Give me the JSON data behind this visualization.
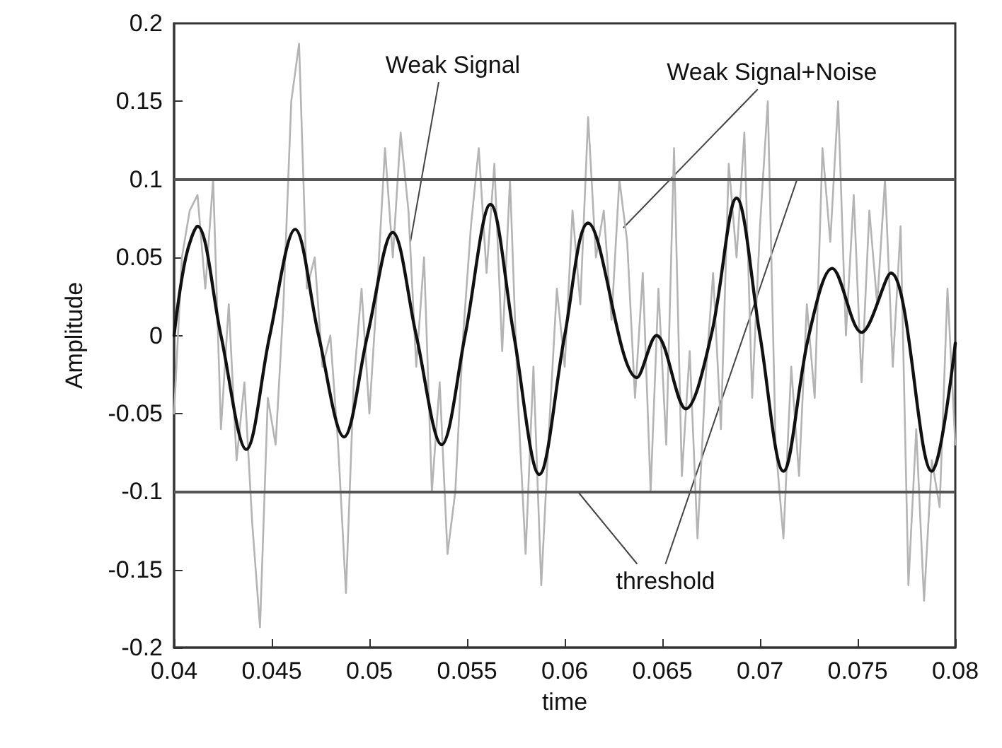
{
  "chart_data": {
    "type": "line",
    "xlabel": "time",
    "ylabel": "Amplitude",
    "xlim": [
      0.04,
      0.08
    ],
    "xticks": [
      0.04,
      0.045,
      0.05,
      0.055,
      0.06,
      0.065,
      0.07,
      0.075,
      0.08
    ],
    "ylim": [
      -0.2,
      0.2
    ],
    "yticks": [
      -0.2,
      -0.15,
      -0.1,
      -0.05,
      0,
      0.05,
      0.1,
      0.15,
      0.2
    ],
    "grid": false,
    "marker": "none",
    "line_style": "solid",
    "series": [
      {
        "color": "#b4b4b4",
        "x": [
          0.04,
          0.0404,
          0.0408,
          0.0412,
          0.0416,
          0.042,
          0.0424,
          0.0428,
          0.0432,
          0.0436,
          0.044,
          0.0444,
          0.0448,
          0.0452,
          0.0456,
          0.046,
          0.0464,
          0.0468,
          0.0472,
          0.0476,
          0.048,
          0.0484,
          0.0488,
          0.0492,
          0.0496,
          0.05,
          0.0504,
          0.0508,
          0.0512,
          0.0516,
          0.052,
          0.0524,
          0.0528,
          0.0532,
          0.0536,
          0.054,
          0.0544,
          0.0548,
          0.0552,
          0.0556,
          0.056,
          0.0564,
          0.0568,
          0.0572,
          0.0576,
          0.058,
          0.0584,
          0.0588,
          0.0592,
          0.0596,
          0.06,
          0.0604,
          0.0608,
          0.0612,
          0.0616,
          0.062,
          0.0624,
          0.0628,
          0.0632,
          0.0636,
          0.064,
          0.0644,
          0.0648,
          0.0652,
          0.0656,
          0.066,
          0.0664,
          0.0668,
          0.0672,
          0.0676,
          0.068,
          0.0684,
          0.0688,
          0.0692,
          0.0696,
          0.07,
          0.0704,
          0.0708,
          0.0712,
          0.0716,
          0.072,
          0.0724,
          0.0728,
          0.0732,
          0.0736,
          0.074,
          0.0744,
          0.0748,
          0.0752,
          0.0756,
          0.076,
          0.0764,
          0.0768,
          0.0772,
          0.0776,
          0.078,
          0.0784,
          0.0788,
          0.0792,
          0.0796,
          0.08
        ],
        "values": [
          -0.05,
          0.05,
          0.08,
          0.09,
          0.03,
          0.1,
          -0.06,
          0.02,
          -0.08,
          -0.03,
          -0.12,
          -0.187,
          -0.04,
          -0.07,
          0.02,
          0.15,
          0.187,
          0.03,
          0.05,
          -0.02,
          0,
          -0.07,
          -0.165,
          -0.03,
          0.03,
          -0.05,
          0.03,
          0.12,
          0.05,
          0.13,
          0.08,
          -0.02,
          0.05,
          -0.1,
          -0.03,
          -0.14,
          -0.1,
          0,
          0.07,
          0.12,
          0.04,
          0.11,
          -0.01,
          0.1,
          -0.04,
          -0.14,
          -0.02,
          -0.16,
          -0.06,
          0.03,
          -0.02,
          0.08,
          0.02,
          0.14,
          0.05,
          0.08,
          0.01,
          0.1,
          0.06,
          -0.04,
          0.04,
          -0.1,
          0.03,
          -0.07,
          0.12,
          -0.09,
          -0.01,
          -0.13,
          -0.03,
          0.04,
          -0.06,
          0.11,
          0.05,
          0.13,
          -0.04,
          0.07,
          0.15,
          -0.07,
          -0.13,
          -0.02,
          -0.09,
          0.02,
          -0.04,
          0.12,
          0.06,
          0.15,
          0,
          0.09,
          -0.03,
          0.08,
          0.02,
          0.1,
          -0.02,
          0.07,
          -0.16,
          -0.06,
          -0.17,
          -0.08,
          -0.11,
          0.03,
          -0.07
        ]
      },
      {
        "color": "#111111",
        "x": [
          0.04,
          0.0406,
          0.0412,
          0.0424,
          0.0437,
          0.0449,
          0.0462,
          0.0474,
          0.0487,
          0.0499,
          0.0512,
          0.0524,
          0.0537,
          0.0549,
          0.0562,
          0.0574,
          0.0587,
          0.06,
          0.0612,
          0.0637,
          0.0647,
          0.0662,
          0.0675,
          0.0688,
          0.07,
          0.0712,
          0.0725,
          0.0737,
          0.0752,
          0.0767,
          0.0788,
          0.08
        ],
        "values": [
          0,
          0.05,
          0.07,
          0,
          -0.073,
          0,
          0.068,
          0,
          -0.065,
          0,
          0.066,
          0,
          -0.07,
          0,
          0.084,
          0,
          -0.089,
          0,
          0.072,
          -0.027,
          0,
          -0.047,
          0,
          0.088,
          0,
          -0.087,
          0,
          0.043,
          0.002,
          0.04,
          -0.087,
          -0.005
        ]
      }
    ],
    "ref_lines": [
      {
        "axis": "y",
        "value": 0.1,
        "color": "#555555"
      },
      {
        "axis": "y",
        "value": -0.1,
        "color": "#555555"
      }
    ],
    "annotations": [
      {
        "text": "Weak Signal",
        "x": 0.0521,
        "y": 0.06
      },
      {
        "text": "Weak Signal+Noise",
        "x": 0.063,
        "y": 0.069
      },
      {
        "text": "threshold",
        "x": 0.0719,
        "y": 0.1
      }
    ]
  }
}
